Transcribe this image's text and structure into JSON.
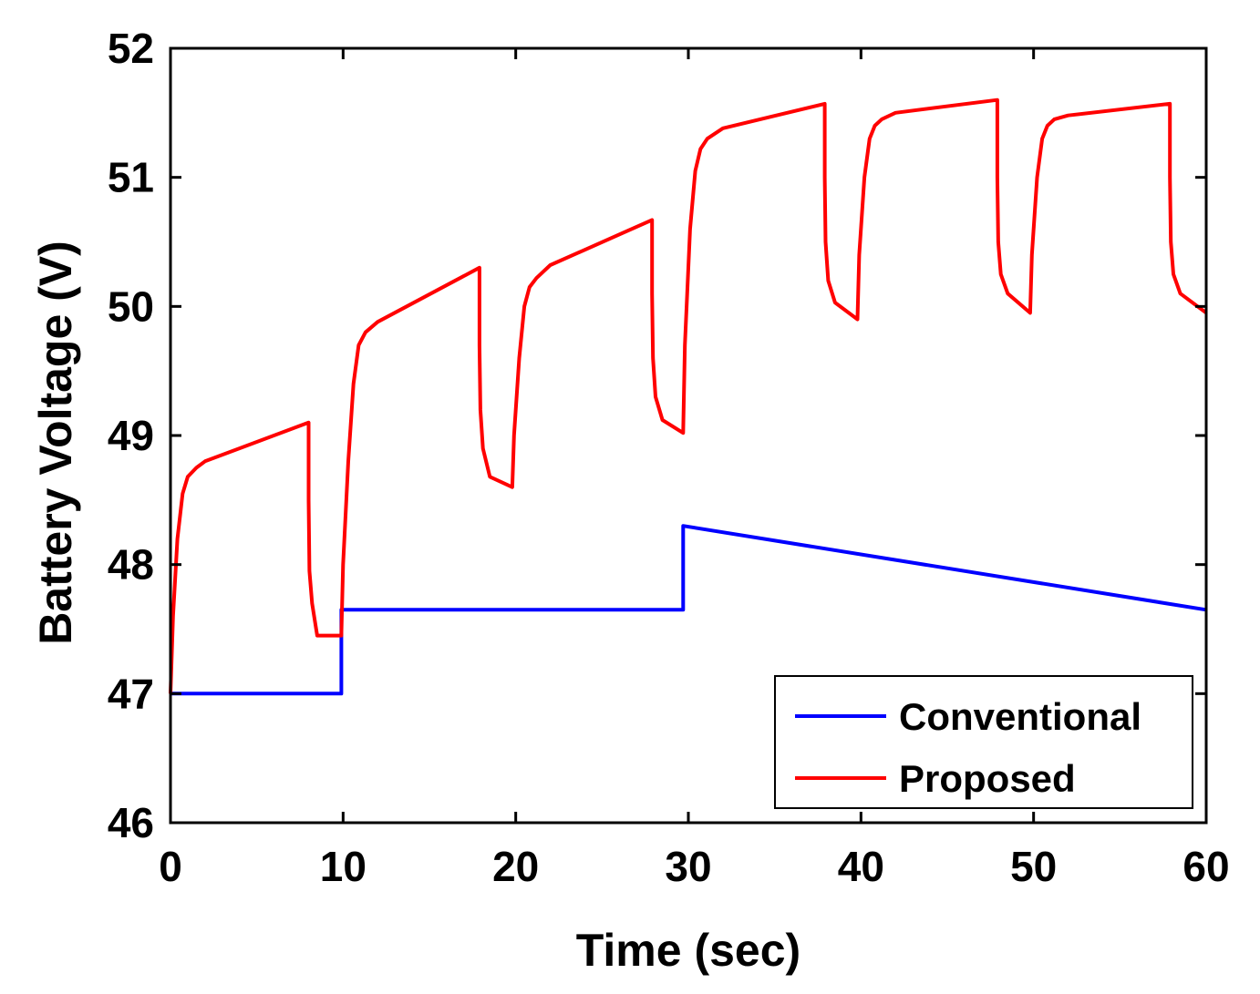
{
  "chart_data": {
    "type": "line",
    "title": "",
    "xlabel": "Time (sec)",
    "ylabel": "Battery Voltage (V)",
    "xlim": [
      0,
      60
    ],
    "ylim": [
      46,
      52
    ],
    "xticks": [
      "0",
      "10",
      "20",
      "30",
      "40",
      "50",
      "60"
    ],
    "yticks": [
      "46",
      "47",
      "48",
      "49",
      "50",
      "51",
      "52"
    ],
    "grid": false,
    "legend_position": "bottom-right",
    "series": [
      {
        "name": "Conventional",
        "color": "#0000ff",
        "x": [
          0,
          9.9,
          9.9,
          29.7,
          29.7,
          60
        ],
        "y": [
          47.0,
          47.0,
          47.65,
          47.65,
          48.3,
          47.65
        ]
      },
      {
        "name": "Proposed",
        "color": "#ff0000",
        "x": [
          0,
          0.15,
          0.4,
          0.7,
          1.0,
          1.5,
          2.0,
          8.0,
          8.0,
          8.05,
          8.2,
          8.5,
          9.9,
          10.0,
          10.3,
          10.6,
          10.9,
          11.3,
          12.0,
          17.9,
          17.9,
          17.95,
          18.1,
          18.5,
          19.8,
          19.9,
          20.2,
          20.5,
          20.8,
          21.2,
          22.0,
          27.9,
          27.9,
          27.95,
          28.1,
          28.5,
          29.7,
          29.8,
          30.1,
          30.4,
          30.7,
          31.1,
          32.0,
          37.9,
          37.9,
          37.95,
          38.1,
          38.5,
          39.8,
          39.9,
          40.2,
          40.5,
          40.8,
          41.2,
          42.0,
          47.9,
          47.9,
          47.95,
          48.1,
          48.5,
          49.8,
          49.9,
          50.2,
          50.5,
          50.8,
          51.2,
          52.0,
          57.9,
          57.9,
          57.95,
          58.1,
          58.5,
          60.0
        ],
        "y": [
          47.0,
          47.6,
          48.2,
          48.55,
          48.68,
          48.75,
          48.8,
          49.1,
          48.5,
          47.95,
          47.7,
          47.45,
          47.45,
          48.0,
          48.8,
          49.4,
          49.7,
          49.8,
          49.88,
          50.3,
          49.7,
          49.2,
          48.9,
          48.68,
          48.6,
          49.0,
          49.6,
          50.0,
          50.15,
          50.22,
          50.32,
          50.67,
          50.1,
          49.6,
          49.3,
          49.12,
          49.02,
          49.7,
          50.6,
          51.05,
          51.22,
          51.3,
          51.38,
          51.57,
          51.0,
          50.5,
          50.2,
          50.03,
          49.9,
          50.4,
          51.0,
          51.3,
          51.4,
          51.45,
          51.5,
          51.6,
          51.0,
          50.5,
          50.25,
          50.1,
          49.95,
          50.4,
          51.0,
          51.3,
          51.4,
          51.45,
          51.48,
          51.57,
          51.0,
          50.5,
          50.25,
          50.1,
          49.95
        ]
      }
    ]
  }
}
